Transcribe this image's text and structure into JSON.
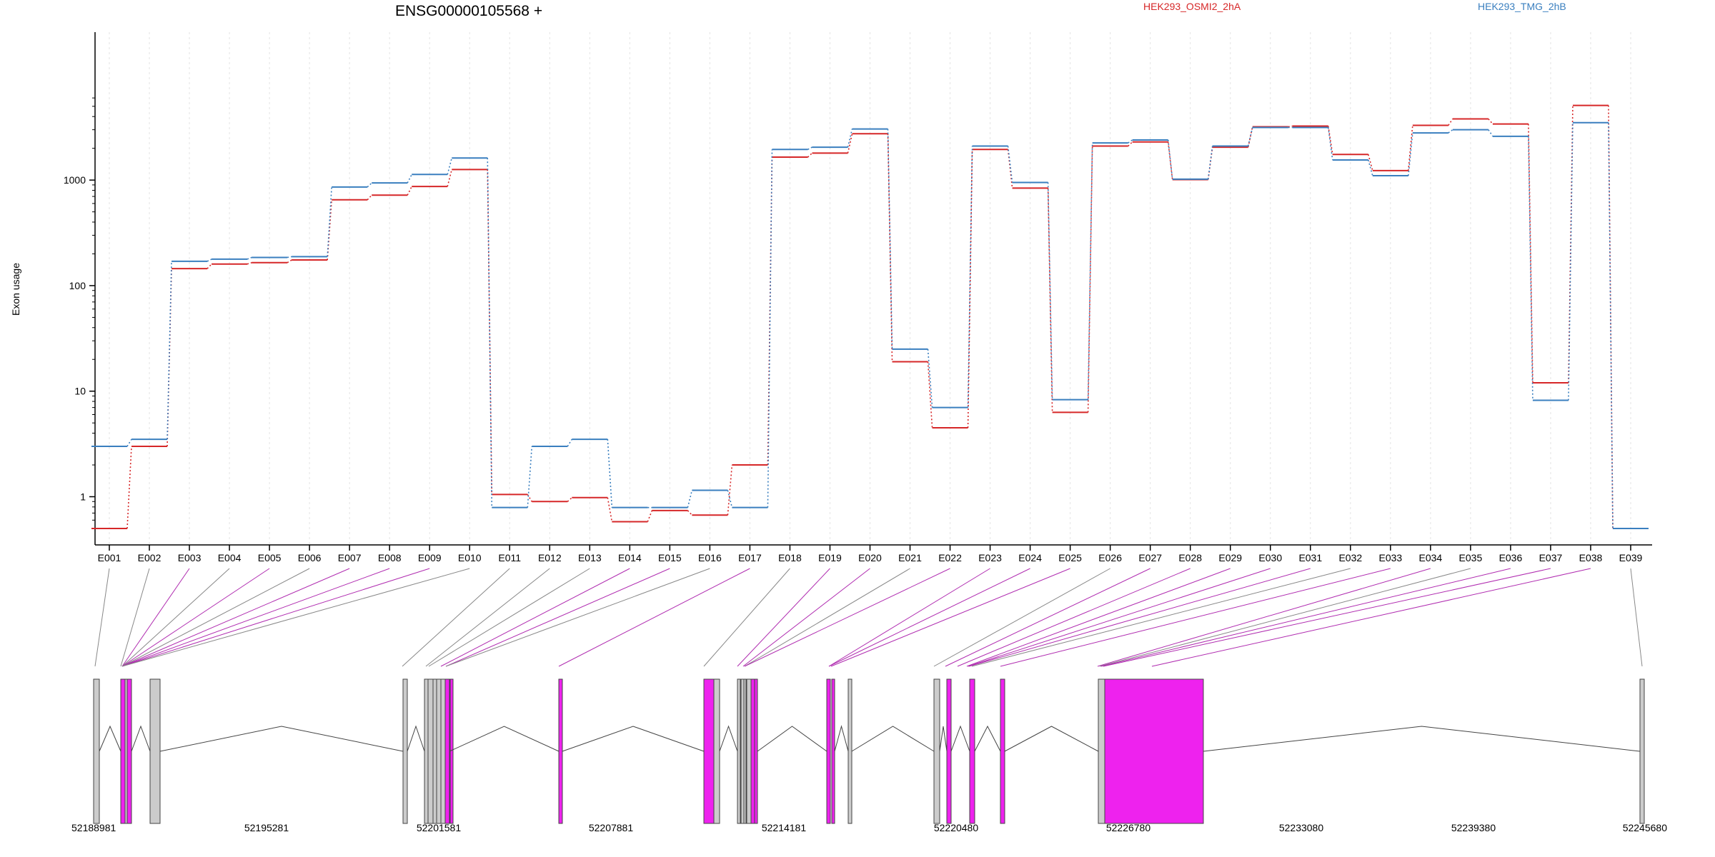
{
  "header": {
    "gene_id": "ENSG00000105568 +",
    "legend": [
      {
        "label": "HEK293_OSMI2_2hA",
        "color": "#d62728"
      },
      {
        "label": "HEK293_TMG_2hB",
        "color": "#3a7fbf"
      }
    ]
  },
  "chart_data": {
    "type": "line",
    "ylabel": "Exon usage",
    "yscale": "log",
    "ylim": [
      0.5,
      6500
    ],
    "yticks": [
      {
        "value": 1,
        "label": "1"
      },
      {
        "value": 10,
        "label": "10"
      },
      {
        "value": 100,
        "label": "100"
      },
      {
        "value": 1000,
        "label": "1000"
      }
    ],
    "grid": "vertical dotted",
    "categories": [
      "E001",
      "E002",
      "E003",
      "E004",
      "E005",
      "E006",
      "E007",
      "E008",
      "E009",
      "E010",
      "E011",
      "E012",
      "E013",
      "E014",
      "E015",
      "E016",
      "E017",
      "E018",
      "E019",
      "E020",
      "E021",
      "E022",
      "E023",
      "E024",
      "E025",
      "E026",
      "E027",
      "E028",
      "E029",
      "E030",
      "E031",
      "E032",
      "E033",
      "E034",
      "E035",
      "E036",
      "E037",
      "E038",
      "E039"
    ],
    "series": [
      {
        "name": "HEK293_OSMI2_2hA",
        "color": "#d62728",
        "values": [
          0.5,
          3.0,
          145,
          160,
          165,
          175,
          650,
          720,
          870,
          1260,
          1.05,
          0.9,
          0.98,
          0.58,
          0.74,
          0.67,
          2.0,
          1650,
          1800,
          2750,
          19,
          4.5,
          1950,
          840,
          6.3,
          2100,
          2300,
          1010,
          2050,
          3200,
          3250,
          1750,
          1230,
          3300,
          3800,
          3400,
          12,
          5100,
          0.5
        ]
      },
      {
        "name": "HEK293_TMG_2hB",
        "color": "#3a7fbf",
        "values": [
          3.0,
          3.5,
          170,
          178,
          185,
          188,
          860,
          940,
          1130,
          1620,
          0.79,
          3.0,
          3.5,
          0.79,
          0.79,
          1.15,
          0.79,
          1950,
          2050,
          3050,
          25,
          7,
          2100,
          950,
          8.3,
          2250,
          2400,
          1020,
          2100,
          3150,
          3150,
          1550,
          1100,
          2800,
          3000,
          2600,
          8.2,
          3500,
          0.5
        ]
      }
    ]
  },
  "gene_model": {
    "coordinate_labels": [
      "52188981",
      "52195281",
      "52201581",
      "52207881",
      "52214181",
      "52220480",
      "52226780",
      "52233080",
      "52239380",
      "52245680"
    ],
    "exon_highlight_color": "#ee22ee",
    "exon_default_color": "#cccccc"
  }
}
